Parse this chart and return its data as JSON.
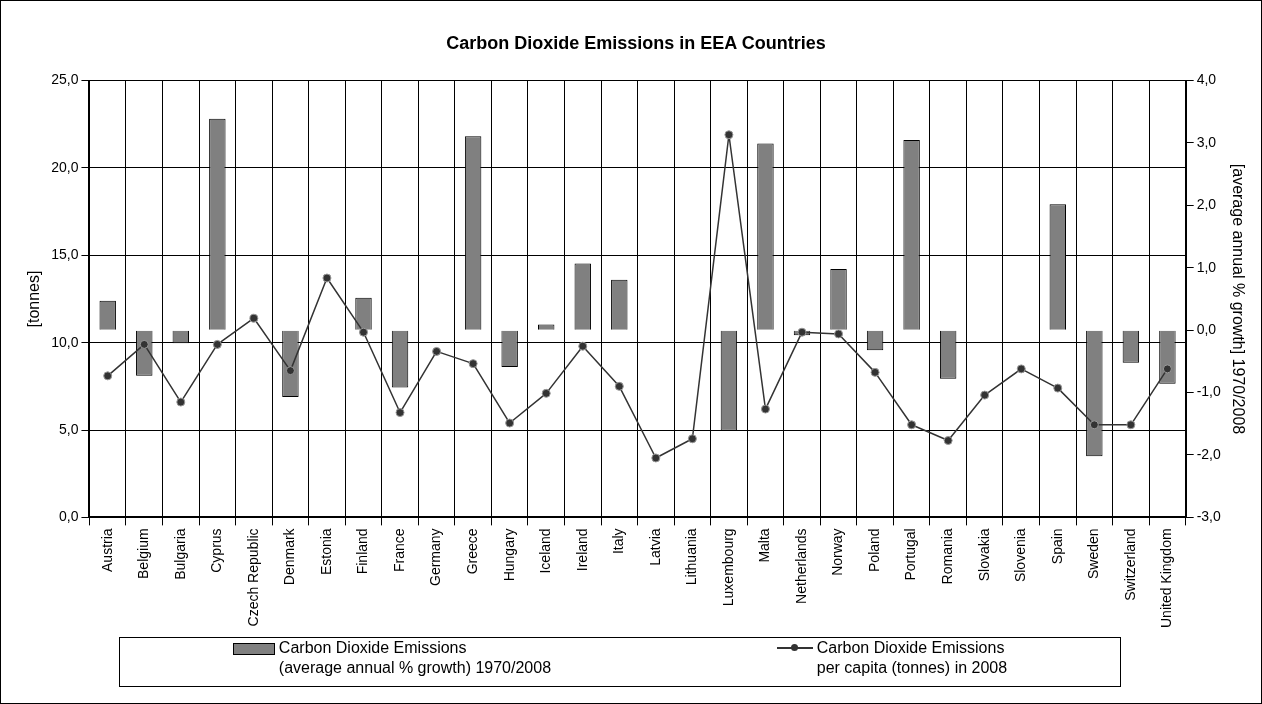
{
  "chart_data": {
    "type": "bar",
    "title": "Carbon Dioxide Emissions in EEA Countries",
    "ylabel": "[tonnes]",
    "y2label": "[average annual % growth] 1970/2008",
    "categories": [
      "Austria",
      "Belgium",
      "Bulgaria",
      "Cyprus",
      "Czech Republic",
      "Denmark",
      "Estonia",
      "Finland",
      "France",
      "Germany",
      "Greece",
      "Hungary",
      "Iceland",
      "Ireland",
      "Italy",
      "Latvia",
      "Lithuania",
      "Luxembourg",
      "Malta",
      "Netherlands",
      "Norway",
      "Poland",
      "Portugal",
      "Romania",
      "Slovakia",
      "Slovenia",
      "Spain",
      "Sweden",
      "Switzerland",
      "United Kingdom"
    ],
    "series": [
      {
        "axis": "y2",
        "name": "Carbon Dioxide Emissions\n(average annual % growth) 1970/2008",
        "color": "#808080",
        "values": [
          0.47,
          -0.73,
          -0.21,
          3.39,
          null,
          -1.07,
          null,
          0.52,
          -0.92,
          null,
          3.11,
          -0.59,
          0.09,
          1.07,
          0.81,
          null,
          null,
          -1.61,
          2.99,
          -0.08,
          0.98,
          -0.32,
          3.05,
          -0.78,
          null,
          null,
          2.02,
          -2.02,
          -0.52,
          -0.86
        ]
      },
      {
        "type": "line",
        "axis": "y",
        "name": "Carbon Dioxide Emissions\nper capita (tonnes) in 2008",
        "color": "#333333",
        "marker": "circle",
        "line_style": "solid",
        "values": [
          8.1,
          9.9,
          6.6,
          9.9,
          11.4,
          8.4,
          13.7,
          10.6,
          6.0,
          9.5,
          8.8,
          5.4,
          7.1,
          9.8,
          7.5,
          3.4,
          4.5,
          21.9,
          6.2,
          10.6,
          10.5,
          8.3,
          5.3,
          4.4,
          7.0,
          8.5,
          7.4,
          5.3,
          5.3,
          8.5
        ]
      }
    ],
    "ylim": [
      0,
      25
    ],
    "yticks": [
      {
        "value": 0,
        "label": "0,0"
      },
      {
        "value": 5,
        "label": "5,0"
      },
      {
        "value": 10,
        "label": "10,0"
      },
      {
        "value": 15,
        "label": "15,0"
      },
      {
        "value": 20,
        "label": "20,0"
      },
      {
        "value": 25,
        "label": "25,0"
      }
    ],
    "y2lim": [
      -3,
      4
    ],
    "y2ticks": [
      {
        "value": -3,
        "label": "-3,0"
      },
      {
        "value": -2,
        "label": "-2,0"
      },
      {
        "value": -1,
        "label": "-1,0"
      },
      {
        "value": 0,
        "label": "0,0"
      },
      {
        "value": 1,
        "label": "1,0"
      },
      {
        "value": 2,
        "label": "2,0"
      },
      {
        "value": 3,
        "label": "3,0"
      },
      {
        "value": 4,
        "label": "4,0"
      }
    ],
    "grid": true,
    "legend": "bottom"
  }
}
